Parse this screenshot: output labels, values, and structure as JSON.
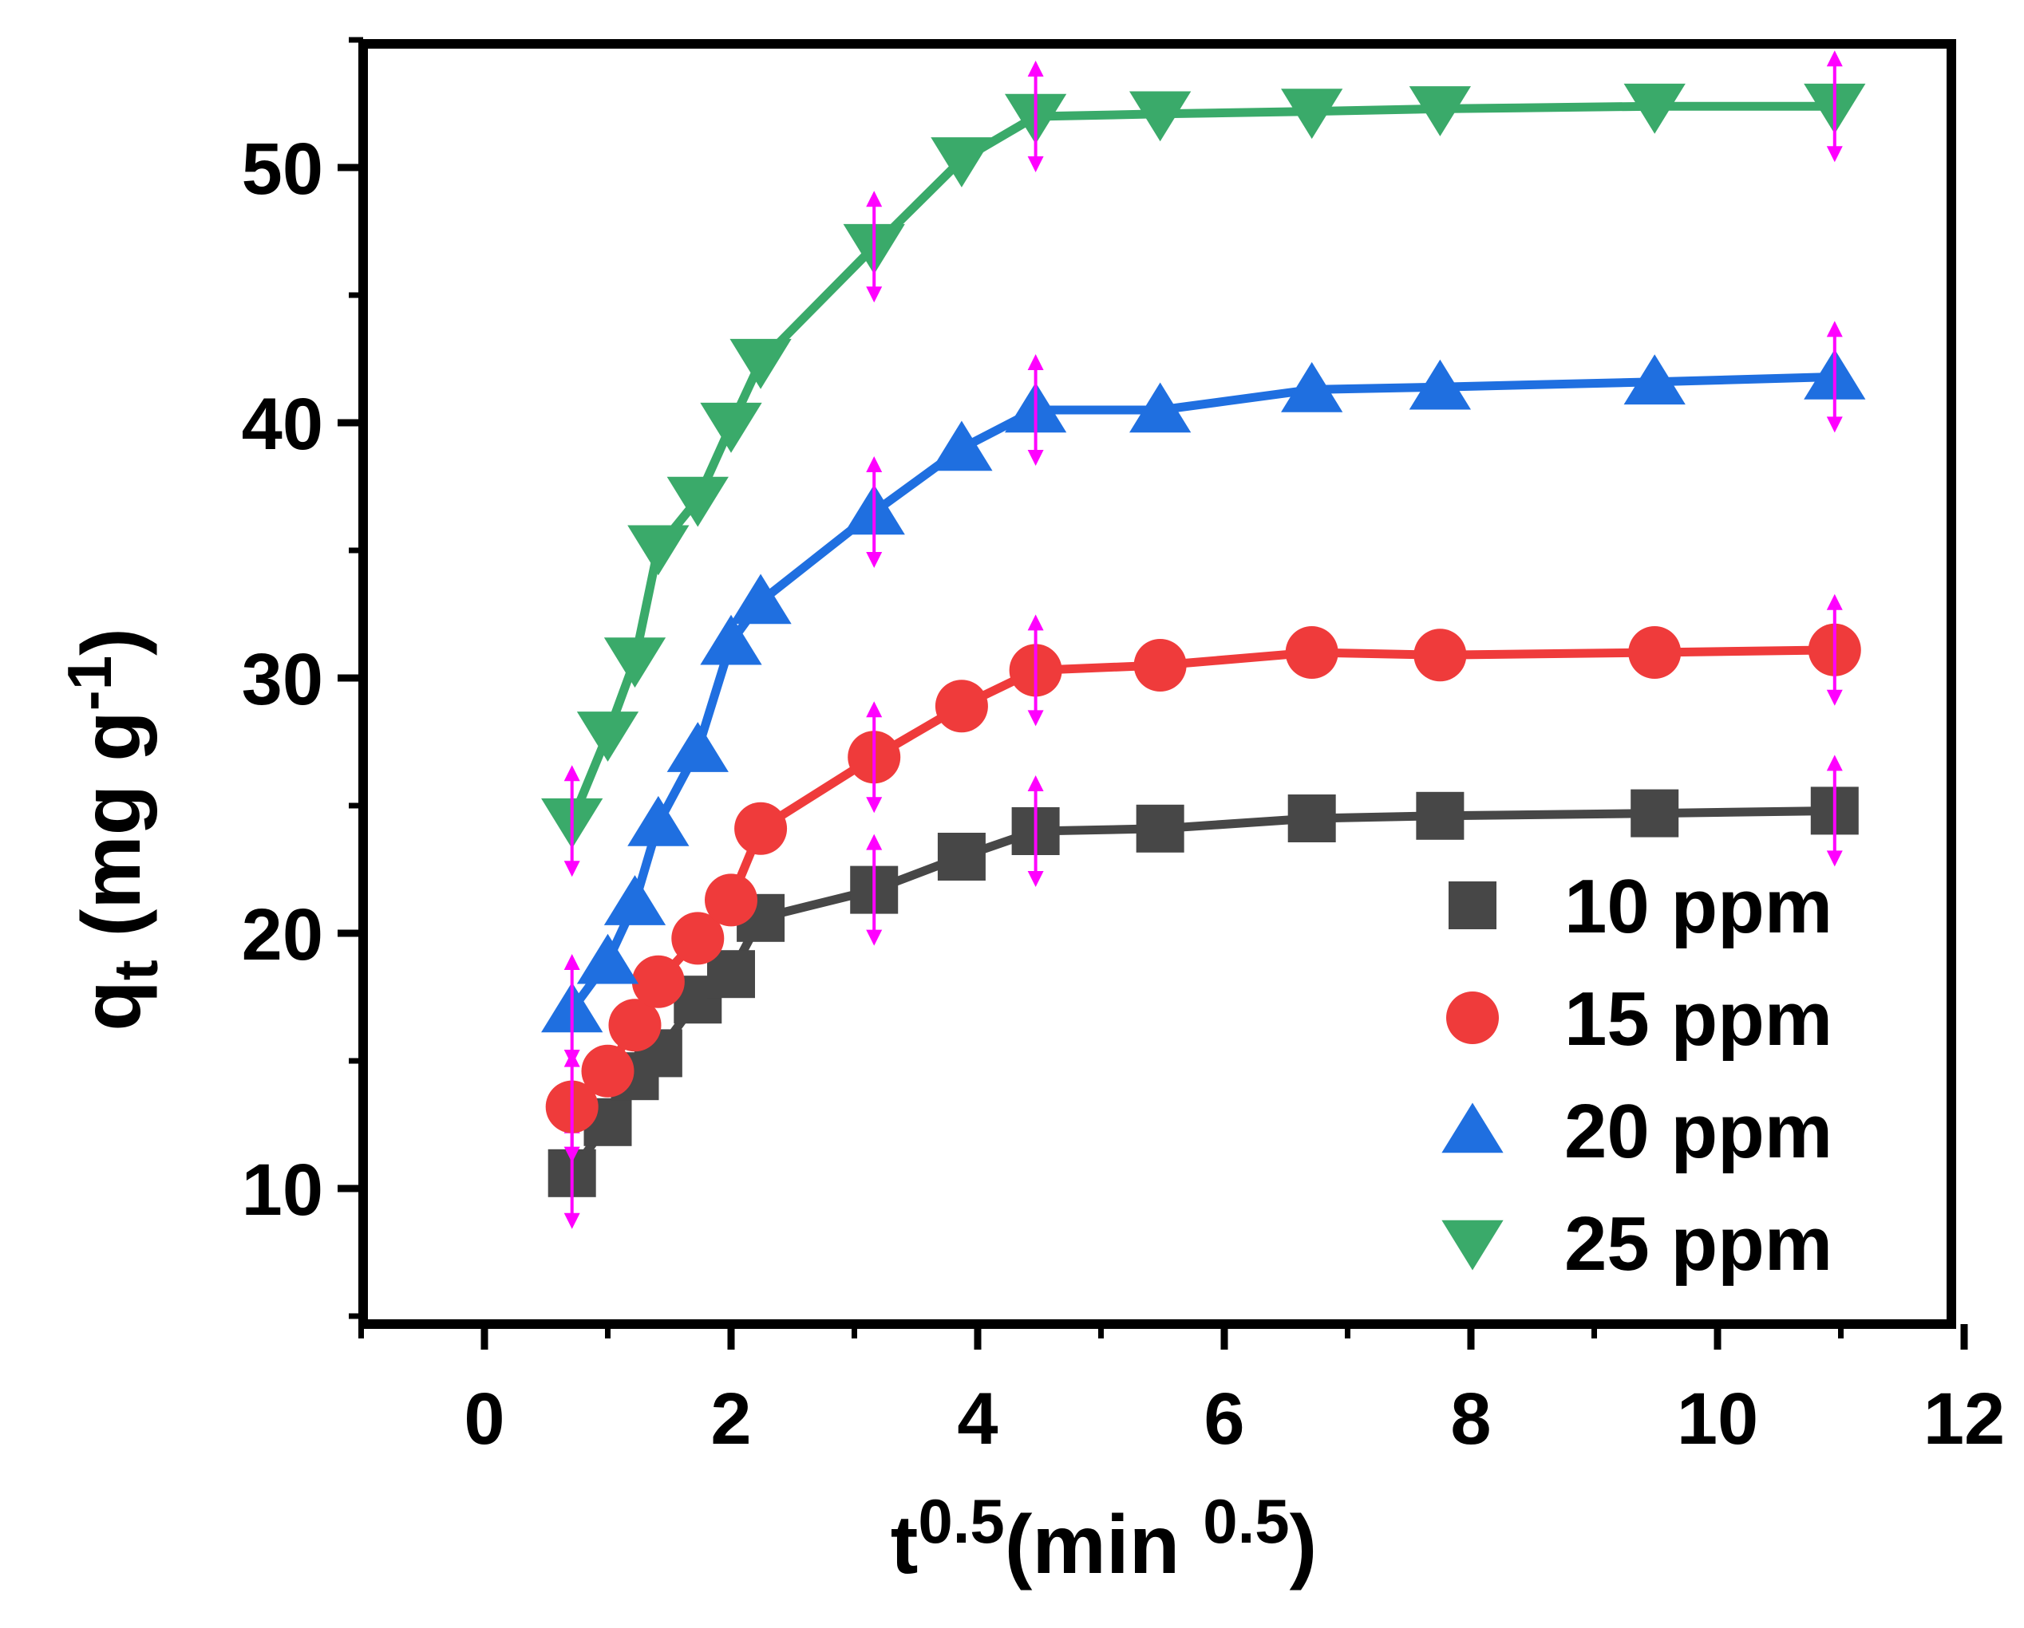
{
  "chart_data": {
    "type": "line",
    "title": "",
    "xlabel": {
      "base": "t",
      "base_sup": "0.5",
      "paren_open": "(min ",
      "paren_sup": "0.5",
      "paren_close": ")"
    },
    "ylabel": {
      "base": "q",
      "sub": "t",
      "unit_open": " (mg g",
      "unit_sup": "-1",
      "unit_close": ")"
    },
    "xlim": [
      -1,
      12
    ],
    "ylim": [
      5,
      55
    ],
    "xticks": [
      0,
      2,
      4,
      6,
      8,
      10,
      12
    ],
    "yticks": [
      10,
      20,
      30,
      40,
      50
    ],
    "xtick_labels": [
      "0",
      "2",
      "4",
      "6",
      "8",
      "10",
      "12"
    ],
    "ytick_labels": [
      "10",
      "20",
      "30",
      "40",
      "50"
    ],
    "legend_position": "bottom-right",
    "error_bar_color": "#ff00ff",
    "error_bar_indices": [
      0,
      7,
      9,
      14
    ],
    "error_bar_half_height": 2,
    "series": [
      {
        "name": "10 ppm",
        "marker": "square",
        "color": "#474747",
        "x": [
          0.71,
          1.0,
          1.22,
          1.41,
          1.73,
          2.0,
          2.24,
          3.16,
          3.87,
          4.47,
          5.48,
          6.71,
          7.75,
          9.49,
          10.95
        ],
        "y": [
          10.6,
          12.6,
          14.4,
          15.3,
          17.4,
          18.4,
          20.6,
          21.7,
          23.0,
          24.0,
          24.1,
          24.5,
          24.6,
          24.7,
          24.8
        ]
      },
      {
        "name": "15 ppm",
        "marker": "circle",
        "color": "#ef3b3b",
        "x": [
          0.71,
          1.0,
          1.22,
          1.41,
          1.73,
          2.0,
          2.24,
          3.16,
          3.87,
          4.47,
          5.48,
          6.71,
          7.75,
          9.49,
          10.95
        ],
        "y": [
          13.2,
          14.6,
          16.4,
          18.1,
          19.8,
          21.3,
          24.1,
          26.9,
          28.9,
          30.3,
          30.5,
          31.0,
          30.9,
          31.0,
          31.1
        ]
      },
      {
        "name": "20 ppm",
        "marker": "triangle-up",
        "color": "#1f6fe0",
        "x": [
          0.71,
          1.0,
          1.22,
          1.41,
          1.73,
          2.0,
          2.24,
          3.16,
          3.87,
          4.47,
          5.48,
          6.71,
          7.75,
          9.49,
          10.95
        ],
        "y": [
          17.0,
          18.9,
          21.2,
          24.3,
          27.2,
          31.4,
          33.0,
          36.5,
          39.0,
          40.5,
          40.5,
          41.3,
          41.4,
          41.6,
          41.8
        ]
      },
      {
        "name": "25 ppm",
        "marker": "triangle-down",
        "color": "#3aaa6a",
        "x": [
          0.71,
          1.0,
          1.22,
          1.41,
          1.73,
          2.0,
          2.24,
          3.16,
          3.87,
          4.47,
          5.48,
          6.71,
          7.75,
          9.49,
          10.95
        ],
        "y": [
          24.4,
          27.8,
          30.7,
          35.1,
          37.0,
          39.9,
          42.4,
          46.9,
          50.3,
          52.0,
          52.1,
          52.2,
          52.3,
          52.4,
          52.4
        ]
      }
    ]
  }
}
